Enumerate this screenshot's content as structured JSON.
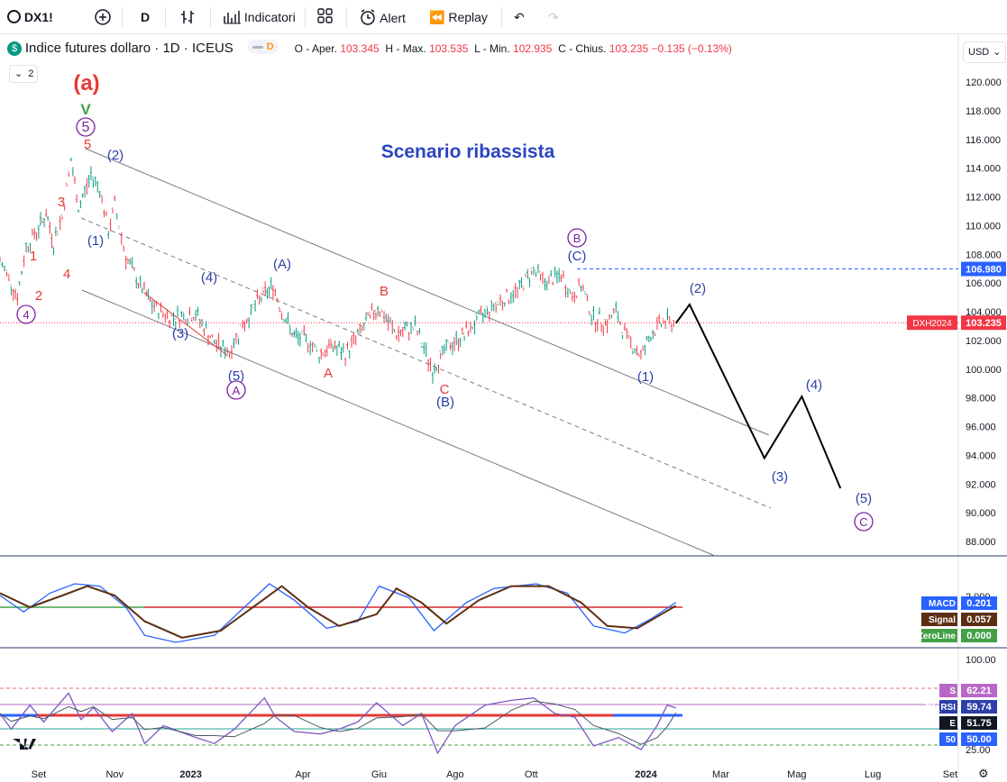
{
  "toolbar": {
    "symbol": "DX1!",
    "interval": "D",
    "indicators_label": "Indicatori",
    "alert_label": "Alert",
    "replay_label": "Replay"
  },
  "header": {
    "title": "Indice futures dollaro · 1D · ICEUS",
    "badge": "D",
    "o_label": "O - Aper.",
    "o_val": "103.345",
    "h_label": "H - Max.",
    "h_val": "103.535",
    "l_label": "L - Min.",
    "l_val": "102.935",
    "c_label": "C - Chius.",
    "c_val": "103.235",
    "change": "−0.135 (−0.13%)",
    "counter": "2"
  },
  "currency": "USD",
  "colors": {
    "up": "#089981",
    "down": "#f23645",
    "blue": "#2962ff",
    "wave_blue": "#2c3ea8",
    "wave_red": "#e53935",
    "purple": "#7b1fa2",
    "macd": "#2962ff",
    "signal": "#5d2f12",
    "zero": "#43a047",
    "rsi": "#7e57c2"
  },
  "chart_data": [
    {
      "type": "line",
      "title": "Scenario ribassista",
      "series_name": "Indice futures dollaro",
      "ylim": [
        87,
        122
      ],
      "y_ticks": [
        "120.000",
        "118.000",
        "116.000",
        "114.000",
        "112.000",
        "110.000",
        "108.000",
        "106.000",
        "104.000",
        "102.000",
        "100.000",
        "98.000",
        "96.000",
        "94.000",
        "92.000",
        "90.000",
        "88.000"
      ],
      "x_ticks": [
        "Set",
        "Nov",
        "2023",
        "Apr",
        "Giu",
        "Ago",
        "Ott",
        "2024",
        "Mar",
        "Mag",
        "Lug",
        "Set"
      ],
      "price_path": [
        [
          "2022-08-01",
          107.5
        ],
        [
          "2022-08-10",
          106.0
        ],
        [
          "2022-08-15",
          105.0
        ],
        [
          "2022-08-22",
          108.5
        ],
        [
          "2022-09-01",
          109.8
        ],
        [
          "2022-09-07",
          110.8
        ],
        [
          "2022-09-13",
          108.8
        ],
        [
          "2022-09-20",
          110.6
        ],
        [
          "2022-09-27",
          114.5
        ],
        [
          "2022-10-03",
          111.2
        ],
        [
          "2022-10-13",
          113.5
        ],
        [
          "2022-10-20",
          112.6
        ],
        [
          "2022-10-27",
          109.5
        ],
        [
          "2022-11-01",
          111.4
        ],
        [
          "2022-11-10",
          107.8
        ],
        [
          "2022-11-20",
          106.0
        ],
        [
          "2022-12-01",
          104.4
        ],
        [
          "2022-12-15",
          103.6
        ],
        [
          "2023-01-05",
          103.8
        ],
        [
          "2023-01-20",
          101.8
        ],
        [
          "2023-02-01",
          101.2
        ],
        [
          "2023-02-10",
          102.8
        ],
        [
          "2023-02-25",
          104.8
        ],
        [
          "2023-03-08",
          105.8
        ],
        [
          "2023-03-15",
          104.0
        ],
        [
          "2023-03-25",
          102.2
        ],
        [
          "2023-04-05",
          102.0
        ],
        [
          "2023-04-14",
          101.0
        ],
        [
          "2023-04-25",
          101.6
        ],
        [
          "2023-05-05",
          101.0
        ],
        [
          "2023-05-20",
          103.0
        ],
        [
          "2023-05-31",
          104.3
        ],
        [
          "2023-06-15",
          102.4
        ],
        [
          "2023-06-30",
          102.9
        ],
        [
          "2023-07-14",
          99.9
        ],
        [
          "2023-07-25",
          101.4
        ],
        [
          "2023-08-10",
          102.5
        ],
        [
          "2023-08-25",
          103.9
        ],
        [
          "2023-09-08",
          104.8
        ],
        [
          "2023-09-20",
          105.4
        ],
        [
          "2023-10-03",
          106.9
        ],
        [
          "2023-10-12",
          106.0
        ],
        [
          "2023-10-25",
          106.5
        ],
        [
          "2023-11-03",
          105.0
        ],
        [
          "2023-11-10",
          105.8
        ],
        [
          "2023-11-20",
          103.5
        ],
        [
          "2023-12-01",
          103.2
        ],
        [
          "2023-12-08",
          104.0
        ],
        [
          "2023-12-15",
          102.4
        ],
        [
          "2023-12-28",
          100.9
        ],
        [
          "2024-01-05",
          102.4
        ],
        [
          "2024-01-15",
          103.3
        ],
        [
          "2024-01-25",
          103.2
        ]
      ],
      "projection": [
        [
          "2024-01-25",
          103.2
        ],
        [
          "2024-02-05",
          104.5
        ],
        [
          "2024-04-05",
          93.8
        ],
        [
          "2024-05-05",
          98.1
        ],
        [
          "2024-06-05",
          91.7
        ]
      ],
      "last_price_label": "DXH2024",
      "last_price": 103.235,
      "level_line": 106.98,
      "level_label": "106.980",
      "wave_labels": [
        "(a)",
        "V",
        "5",
        "5",
        "4",
        "3",
        "2",
        "1",
        "4",
        "(2)",
        "(1)",
        "(3)",
        "(4)",
        "(5)",
        "A",
        "(A)",
        "A",
        "B",
        "C",
        "(B)",
        "B",
        "(C)",
        "(1)",
        "(2)",
        "(3)",
        "(4)",
        "(5)",
        "C"
      ]
    },
    {
      "type": "line",
      "name": "MACD",
      "ylim": [
        -2.5,
        2.5
      ],
      "y_ticks": [
        "2.000"
      ],
      "series": [
        {
          "name": "MACD",
          "value": 0.201
        },
        {
          "name": "Signal",
          "value": 0.057
        },
        {
          "name": "ZeroLine",
          "value": 0.0
        }
      ],
      "macd_path": [
        [
          "2022-08-01",
          0.5
        ],
        [
          "2022-08-20",
          -0.2
        ],
        [
          "2022-09-10",
          0.6
        ],
        [
          "2022-09-30",
          1.0
        ],
        [
          "2022-10-20",
          0.9
        ],
        [
          "2022-11-10",
          0.0
        ],
        [
          "2022-11-25",
          -1.2
        ],
        [
          "2022-12-20",
          -1.5
        ],
        [
          "2023-01-20",
          -1.2
        ],
        [
          "2023-02-15",
          0.1
        ],
        [
          "2023-03-05",
          1.0
        ],
        [
          "2023-03-25",
          0.3
        ],
        [
          "2023-04-20",
          -0.9
        ],
        [
          "2023-05-15",
          -0.6
        ],
        [
          "2023-06-01",
          0.9
        ],
        [
          "2023-06-25",
          0.4
        ],
        [
          "2023-07-15",
          -1.0
        ],
        [
          "2023-08-10",
          0.2
        ],
        [
          "2023-09-01",
          0.8
        ],
        [
          "2023-10-05",
          1.0
        ],
        [
          "2023-10-30",
          0.6
        ],
        [
          "2023-11-20",
          -0.8
        ],
        [
          "2023-12-15",
          -1.1
        ],
        [
          "2024-01-05",
          -0.5
        ],
        [
          "2024-01-25",
          0.2
        ]
      ],
      "signal_path": [
        [
          "2022-08-01",
          0.6
        ],
        [
          "2022-08-25",
          0.0
        ],
        [
          "2022-09-20",
          0.5
        ],
        [
          "2022-10-10",
          0.9
        ],
        [
          "2022-11-01",
          0.5
        ],
        [
          "2022-11-25",
          -0.6
        ],
        [
          "2022-12-25",
          -1.3
        ],
        [
          "2023-01-25",
          -1.0
        ],
        [
          "2023-02-25",
          0.2
        ],
        [
          "2023-03-15",
          0.9
        ],
        [
          "2023-04-05",
          0.0
        ],
        [
          "2023-04-30",
          -0.8
        ],
        [
          "2023-05-30",
          -0.3
        ],
        [
          "2023-06-15",
          0.8
        ],
        [
          "2023-07-05",
          0.2
        ],
        [
          "2023-07-25",
          -0.7
        ],
        [
          "2023-08-20",
          0.3
        ],
        [
          "2023-09-15",
          0.9
        ],
        [
          "2023-10-15",
          0.9
        ],
        [
          "2023-11-10",
          0.2
        ],
        [
          "2023-12-01",
          -0.8
        ],
        [
          "2023-12-25",
          -0.9
        ],
        [
          "2024-01-25",
          0.06
        ]
      ]
    },
    {
      "type": "line",
      "name": "JK_RSI",
      "ylim": [
        20,
        105
      ],
      "y_ticks": [
        "100.00",
        "25.00"
      ],
      "series": [
        {
          "name": "S",
          "value": 62.21
        },
        {
          "name": "JK_RSI",
          "value": 59.74
        },
        {
          "name": "E",
          "value": 51.75
        },
        {
          "name": "50",
          "value": 50.0
        }
      ],
      "rsi_path": [
        [
          "2022-08-01",
          55
        ],
        [
          "2022-08-10",
          42
        ],
        [
          "2022-08-25",
          62
        ],
        [
          "2022-09-05",
          48
        ],
        [
          "2022-09-25",
          72
        ],
        [
          "2022-10-05",
          50
        ],
        [
          "2022-10-15",
          60
        ],
        [
          "2022-10-30",
          40
        ],
        [
          "2022-11-15",
          55
        ],
        [
          "2022-11-25",
          30
        ],
        [
          "2022-12-10",
          45
        ],
        [
          "2023-01-05",
          35
        ],
        [
          "2023-01-20",
          30
        ],
        [
          "2023-02-05",
          42
        ],
        [
          "2023-03-01",
          68
        ],
        [
          "2023-03-10",
          52
        ],
        [
          "2023-03-25",
          40
        ],
        [
          "2023-04-15",
          38
        ],
        [
          "2023-04-30",
          42
        ],
        [
          "2023-05-15",
          48
        ],
        [
          "2023-05-30",
          64
        ],
        [
          "2023-06-20",
          45
        ],
        [
          "2023-07-05",
          55
        ],
        [
          "2023-07-18",
          22
        ],
        [
          "2023-08-01",
          45
        ],
        [
          "2023-08-25",
          62
        ],
        [
          "2023-09-15",
          66
        ],
        [
          "2023-10-03",
          68
        ],
        [
          "2023-10-20",
          55
        ],
        [
          "2023-11-05",
          52
        ],
        [
          "2023-11-20",
          28
        ],
        [
          "2023-12-10",
          35
        ],
        [
          "2023-12-28",
          25
        ],
        [
          "2024-01-10",
          45
        ],
        [
          "2024-01-18",
          62
        ],
        [
          "2024-01-25",
          59.7
        ]
      ]
    }
  ]
}
